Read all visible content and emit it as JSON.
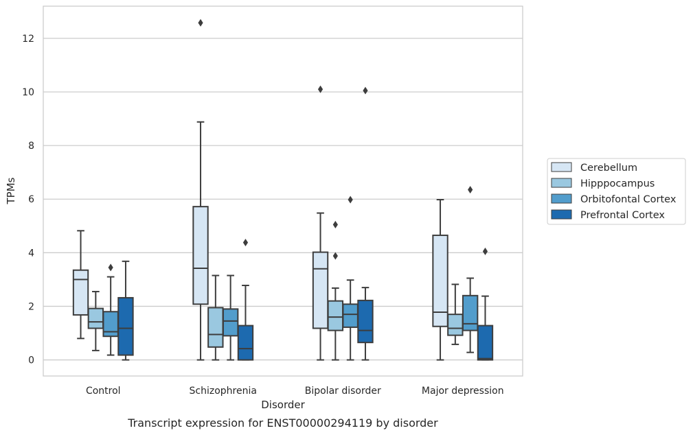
{
  "chart_data": {
    "type": "box",
    "xlabel": "Disorder",
    "ylabel": "TPMs",
    "caption": "Transcript expression for ENST00000294119 by disorder",
    "ylim": [
      -0.6,
      13.2
    ],
    "yticks": [
      "0",
      "2",
      "4",
      "6",
      "8",
      "10",
      "12"
    ],
    "grid": "horizontal",
    "legend_position": "right",
    "categories": [
      "Control",
      "Schizophrenia",
      "Bipolar disorder",
      "Major depression"
    ],
    "series": [
      {
        "name": "Cerebellum",
        "color": "#d6e6f4",
        "boxes": [
          {
            "whisker_low": 0.8,
            "q1": 1.68,
            "median": 3.0,
            "q3": 3.35,
            "whisker_high": 4.82,
            "outliers": []
          },
          {
            "whisker_low": 0.0,
            "q1": 2.08,
            "median": 3.42,
            "q3": 5.72,
            "whisker_high": 8.88,
            "outliers": [
              12.58
            ]
          },
          {
            "whisker_low": 0.0,
            "q1": 1.18,
            "median": 3.4,
            "q3": 4.02,
            "whisker_high": 5.48,
            "outliers": [
              10.1
            ]
          },
          {
            "whisker_low": 0.0,
            "q1": 1.25,
            "median": 1.78,
            "q3": 4.65,
            "whisker_high": 5.98,
            "outliers": []
          }
        ]
      },
      {
        "name": "Hipppocampus",
        "color": "#9ac8e0",
        "boxes": [
          {
            "whisker_low": 0.35,
            "q1": 1.18,
            "median": 1.42,
            "q3": 1.92,
            "whisker_high": 2.55,
            "outliers": []
          },
          {
            "whisker_low": 0.0,
            "q1": 0.48,
            "median": 0.95,
            "q3": 1.95,
            "whisker_high": 3.15,
            "outliers": []
          },
          {
            "whisker_low": 0.0,
            "q1": 1.1,
            "median": 1.6,
            "q3": 2.2,
            "whisker_high": 2.68,
            "outliers": [
              3.88,
              5.05
            ]
          },
          {
            "whisker_low": 0.58,
            "q1": 0.92,
            "median": 1.18,
            "q3": 1.7,
            "whisker_high": 2.82,
            "outliers": []
          }
        ]
      },
      {
        "name": "Orbitofontal Cortex",
        "color": "#529dcc",
        "boxes": [
          {
            "whisker_low": 0.18,
            "q1": 0.88,
            "median": 1.05,
            "q3": 1.8,
            "whisker_high": 3.1,
            "outliers": [
              3.45
            ]
          },
          {
            "whisker_low": 0.0,
            "q1": 0.9,
            "median": 1.45,
            "q3": 1.9,
            "whisker_high": 3.15,
            "outliers": []
          },
          {
            "whisker_low": 0.0,
            "q1": 1.22,
            "median": 1.7,
            "q3": 2.08,
            "whisker_high": 2.98,
            "outliers": [
              5.98
            ]
          },
          {
            "whisker_low": 0.28,
            "q1": 1.1,
            "median": 1.35,
            "q3": 2.4,
            "whisker_high": 3.05,
            "outliers": [
              6.35
            ]
          }
        ]
      },
      {
        "name": "Prefrontal Cortex",
        "color": "#1d6aaf",
        "boxes": [
          {
            "whisker_low": 0.0,
            "q1": 0.18,
            "median": 1.18,
            "q3": 2.32,
            "whisker_high": 3.68,
            "outliers": []
          },
          {
            "whisker_low": 0.0,
            "q1": 0.0,
            "median": 0.42,
            "q3": 1.28,
            "whisker_high": 2.78,
            "outliers": [
              4.38
            ]
          },
          {
            "whisker_low": 0.0,
            "q1": 0.65,
            "median": 1.1,
            "q3": 2.22,
            "whisker_high": 2.7,
            "outliers": [
              10.05
            ]
          },
          {
            "whisker_low": 0.0,
            "q1": 0.0,
            "median": 0.05,
            "q3": 1.28,
            "whisker_high": 2.38,
            "outliers": [
              4.05
            ]
          }
        ]
      }
    ]
  }
}
